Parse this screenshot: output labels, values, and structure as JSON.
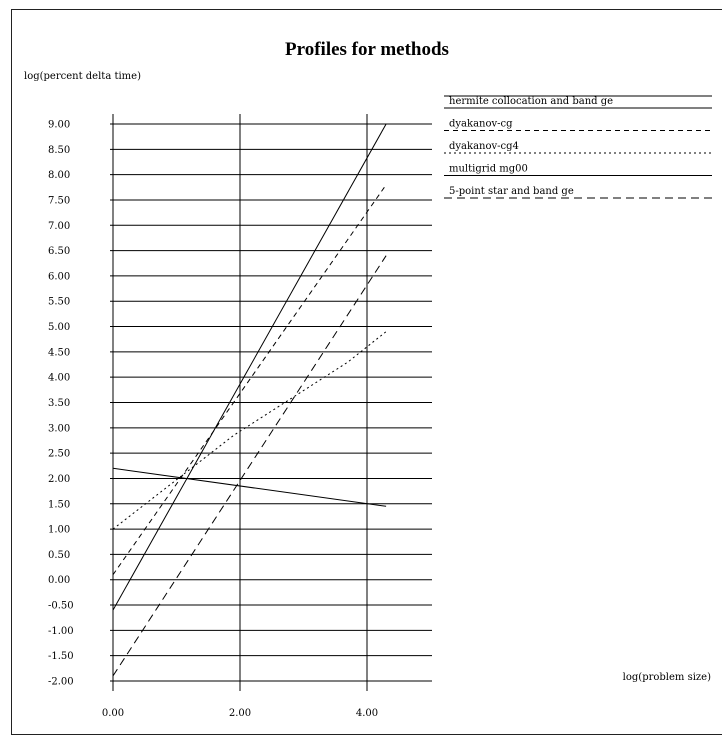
{
  "chart_data": {
    "type": "line",
    "title": "Profiles for methods",
    "ylabel": "log(percent delta time)",
    "xlabel": "log(problem size)",
    "x_ticks": [
      "0.00",
      "2.00",
      "4.00"
    ],
    "y_ticks": [
      "9.00",
      "8.50",
      "8.00",
      "7.50",
      "7.00",
      "6.50",
      "6.00",
      "5.50",
      "5.00",
      "4.50",
      "4.00",
      "3.50",
      "3.00",
      "2.50",
      "2.00",
      "1.50",
      "1.00",
      "0.50",
      "0.00",
      "-0.50",
      "-1.00",
      "-1.50",
      "-2.00"
    ],
    "xlim": [
      0,
      4.35
    ],
    "ylim": [
      -2,
      9
    ],
    "grid": "horizontal lines",
    "legend_position": "right",
    "series": [
      {
        "name": "hermite collocation and band ge",
        "dash": "solid",
        "x": [
          0,
          4.3
        ],
        "y": [
          -0.6,
          9.0
        ]
      },
      {
        "name": "dyakanov-cg",
        "dash": "dashed",
        "x": [
          0,
          4.3
        ],
        "y": [
          0.1,
          7.8
        ]
      },
      {
        "name": "dyakanov-cg4",
        "dash": "dotted",
        "x": [
          0,
          1.9,
          3.7,
          4.3
        ],
        "y": [
          1.0,
          2.85,
          4.3,
          4.9
        ]
      },
      {
        "name": "multigrid mg00",
        "dash": "solid",
        "x": [
          0,
          4.3
        ],
        "y": [
          2.2,
          1.45
        ]
      },
      {
        "name": "5-point star and band ge",
        "dash": "longdash",
        "x": [
          0,
          4.3
        ],
        "y": [
          -1.9,
          6.4
        ]
      }
    ]
  }
}
